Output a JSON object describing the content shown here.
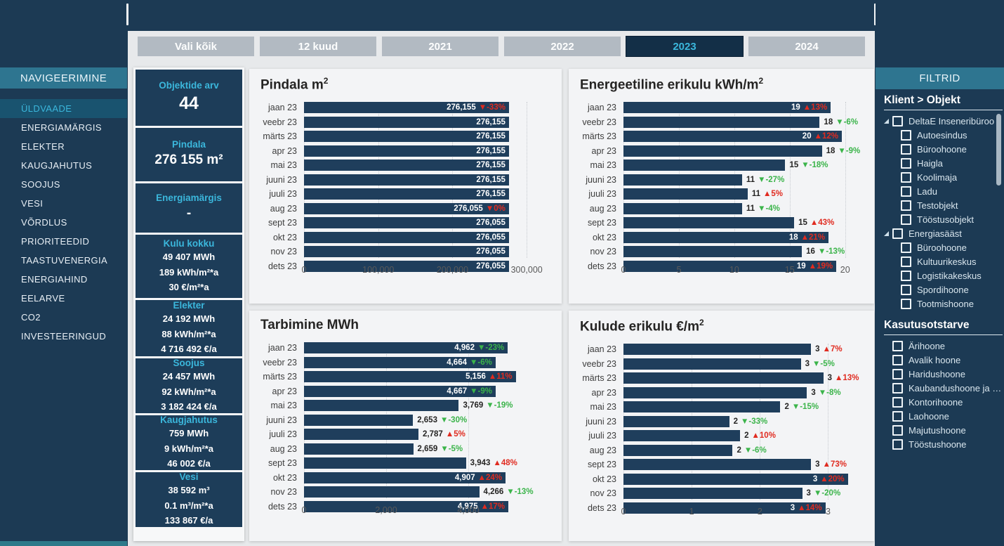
{
  "colors": {
    "navy": "#1c3a54",
    "teal_band": "#2e7590",
    "cyan": "#3bb7dc",
    "bar": "#1f3e5c",
    "red": "#e02b20",
    "green": "#3bb44a",
    "page_bg": "#e7e9eb",
    "card_bg": "#f3f4f6",
    "tab_gray": "#b2bac2",
    "selected_tab_bg": "#132f47",
    "kpi_box": "#1d3d59"
  },
  "nav": {
    "title": "NAVIGEERIMINE",
    "items": [
      {
        "label": "ÜLDVAADE",
        "selected": true
      },
      {
        "label": "ENERGIAMÄRGIS",
        "selected": false
      },
      {
        "label": "ELEKTER",
        "selected": false
      },
      {
        "label": "KAUGJAHUTUS",
        "selected": false
      },
      {
        "label": "SOOJUS",
        "selected": false
      },
      {
        "label": "VESI",
        "selected": false
      },
      {
        "label": "VÕRDLUS",
        "selected": false
      },
      {
        "label": "PRIORITEEDID",
        "selected": false
      },
      {
        "label": "TAASTUVENERGIA",
        "selected": false
      },
      {
        "label": "ENERGIAHIND",
        "selected": false
      },
      {
        "label": "EELARVE",
        "selected": false
      },
      {
        "label": "CO2",
        "selected": false
      },
      {
        "label": "INVESTEERINGUD",
        "selected": false
      }
    ]
  },
  "tabs": [
    {
      "label": "Vali kõik",
      "selected": false
    },
    {
      "label": "12 kuud",
      "selected": false
    },
    {
      "label": "2021",
      "selected": false
    },
    {
      "label": "2022",
      "selected": false
    },
    {
      "label": "2023",
      "selected": true
    },
    {
      "label": "2024",
      "selected": false
    }
  ],
  "kpis": [
    {
      "title": "Objektide arv",
      "style": "xl",
      "lines": [
        "44"
      ]
    },
    {
      "title": "Pindala",
      "style": "lg",
      "lines": [
        "276 155 m²"
      ]
    },
    {
      "title": "Energiamärgis",
      "style": "lg",
      "lines": [
        "-"
      ]
    },
    {
      "title": "Kulu kokku",
      "style": "sm",
      "lines": [
        "49 407 MWh",
        "189 kWh/m²*a",
        "30 €/m²*a"
      ]
    },
    {
      "title": "Elekter",
      "style": "sm",
      "lines": [
        "24 192 MWh",
        "88 kWh/m²*a",
        "4 716 492 €/a"
      ]
    },
    {
      "title": "Soojus",
      "style": "sm",
      "lines": [
        "24 457 MWh",
        "92 kWh/m²*a",
        "3 182 424 €/a"
      ]
    },
    {
      "title": "Kaugjahutus",
      "style": "sm",
      "lines": [
        "759 MWh",
        "9 kWh/m²*a",
        "46 002 €/a"
      ]
    },
    {
      "title": "Vesi",
      "style": "sm",
      "lines": [
        "38 592 m³",
        "0.1 m³/m²*a",
        "133 867 €/a"
      ]
    }
  ],
  "charts": [
    {
      "type": "bar",
      "title": "Pindala m",
      "title_sup": "2",
      "plot_max": 332000,
      "ticks": [
        {
          "v": 0,
          "label": "0"
        },
        {
          "v": 100000,
          "label": "100,000"
        },
        {
          "v": 200000,
          "label": "200,000"
        },
        {
          "v": 300000,
          "label": "300,000"
        }
      ],
      "bars": [
        {
          "m": "jaan 23",
          "v": 276155,
          "label": "276,155",
          "delta": "▼-33%",
          "delta_color": "red",
          "placement": "in"
        },
        {
          "m": "veebr 23",
          "v": 276155,
          "label": "276,155",
          "delta": "",
          "delta_color": "",
          "placement": "in"
        },
        {
          "m": "märts 23",
          "v": 276155,
          "label": "276,155",
          "delta": "",
          "delta_color": "",
          "placement": "in"
        },
        {
          "m": "apr 23",
          "v": 276155,
          "label": "276,155",
          "delta": "",
          "delta_color": "",
          "placement": "in"
        },
        {
          "m": "mai 23",
          "v": 276155,
          "label": "276,155",
          "delta": "",
          "delta_color": "",
          "placement": "in"
        },
        {
          "m": "juuni 23",
          "v": 276155,
          "label": "276,155",
          "delta": "",
          "delta_color": "",
          "placement": "in"
        },
        {
          "m": "juuli 23",
          "v": 276155,
          "label": "276,155",
          "delta": "",
          "delta_color": "",
          "placement": "in"
        },
        {
          "m": "aug 23",
          "v": 276055,
          "label": "276,055",
          "delta": "▼0%",
          "delta_color": "red",
          "placement": "in"
        },
        {
          "m": "sept 23",
          "v": 276055,
          "label": "276,055",
          "delta": "",
          "delta_color": "",
          "placement": "in"
        },
        {
          "m": "okt 23",
          "v": 276055,
          "label": "276,055",
          "delta": "",
          "delta_color": "",
          "placement": "in"
        },
        {
          "m": "nov 23",
          "v": 276055,
          "label": "276,055",
          "delta": "",
          "delta_color": "",
          "placement": "in"
        },
        {
          "m": "dets 23",
          "v": 276055,
          "label": "276,055",
          "delta": "",
          "delta_color": "",
          "placement": "in"
        }
      ]
    },
    {
      "type": "bar",
      "title": "Energeetiline erikulu kWh/m",
      "title_sup": "2",
      "plot_max": 21.6,
      "ticks": [
        {
          "v": 0,
          "label": "0"
        },
        {
          "v": 5,
          "label": "5"
        },
        {
          "v": 10,
          "label": "10"
        },
        {
          "v": 15,
          "label": "15"
        },
        {
          "v": 20,
          "label": "20"
        }
      ],
      "bars": [
        {
          "m": "jaan 23",
          "v": 18.7,
          "label": "19",
          "delta": "▲13%",
          "delta_color": "red",
          "placement": "in"
        },
        {
          "m": "veebr 23",
          "v": 17.7,
          "label": "18",
          "delta": "▼-6%",
          "delta_color": "green",
          "placement": "out"
        },
        {
          "m": "märts 23",
          "v": 19.7,
          "label": "20",
          "delta": "▲12%",
          "delta_color": "red",
          "placement": "in"
        },
        {
          "m": "apr 23",
          "v": 17.9,
          "label": "18",
          "delta": "▼-9%",
          "delta_color": "green",
          "placement": "out"
        },
        {
          "m": "mai 23",
          "v": 14.6,
          "label": "15",
          "delta": "▼-18%",
          "delta_color": "green",
          "placement": "out"
        },
        {
          "m": "juuni 23",
          "v": 10.7,
          "label": "11",
          "delta": "▼-27%",
          "delta_color": "green",
          "placement": "out"
        },
        {
          "m": "juuli 23",
          "v": 11.2,
          "label": "11",
          "delta": "▲5%",
          "delta_color": "red",
          "placement": "out"
        },
        {
          "m": "aug 23",
          "v": 10.7,
          "label": "11",
          "delta": "▼-4%",
          "delta_color": "green",
          "placement": "out"
        },
        {
          "m": "sept 23",
          "v": 15.4,
          "label": "15",
          "delta": "▲43%",
          "delta_color": "red",
          "placement": "out"
        },
        {
          "m": "okt 23",
          "v": 18.5,
          "label": "18",
          "delta": "▲21%",
          "delta_color": "red",
          "placement": "in"
        },
        {
          "m": "nov 23",
          "v": 16.1,
          "label": "16",
          "delta": "▼-13%",
          "delta_color": "green",
          "placement": "out"
        },
        {
          "m": "dets 23",
          "v": 19.2,
          "label": "19",
          "delta": "▲19%",
          "delta_color": "red",
          "placement": "in"
        }
      ]
    },
    {
      "type": "bar",
      "title": "Tarbimine MWh",
      "title_sup": "",
      "plot_max": 6000,
      "ticks": [
        {
          "v": 0,
          "label": "0"
        },
        {
          "v": 2000,
          "label": "2,000"
        },
        {
          "v": 4000,
          "label": "4,000"
        }
      ],
      "bars": [
        {
          "m": "jaan 23",
          "v": 4962,
          "label": "4,962",
          "delta": "▼-23%",
          "delta_color": "green",
          "placement": "in"
        },
        {
          "m": "veebr 23",
          "v": 4664,
          "label": "4,664",
          "delta": "▼-6%",
          "delta_color": "green",
          "placement": "in"
        },
        {
          "m": "märts 23",
          "v": 5156,
          "label": "5,156",
          "delta": "▲11%",
          "delta_color": "red",
          "placement": "in"
        },
        {
          "m": "apr 23",
          "v": 4667,
          "label": "4,667",
          "delta": "▼-9%",
          "delta_color": "green",
          "placement": "in"
        },
        {
          "m": "mai 23",
          "v": 3769,
          "label": "3,769",
          "delta": "▼-19%",
          "delta_color": "green",
          "placement": "out"
        },
        {
          "m": "juuni 23",
          "v": 2653,
          "label": "2,653",
          "delta": "▼-30%",
          "delta_color": "green",
          "placement": "out"
        },
        {
          "m": "juuli 23",
          "v": 2787,
          "label": "2,787",
          "delta": "▲5%",
          "delta_color": "red",
          "placement": "out"
        },
        {
          "m": "aug 23",
          "v": 2659,
          "label": "2,659",
          "delta": "▼-5%",
          "delta_color": "green",
          "placement": "out"
        },
        {
          "m": "sept 23",
          "v": 3943,
          "label": "3,943",
          "delta": "▲48%",
          "delta_color": "red",
          "placement": "out"
        },
        {
          "m": "okt 23",
          "v": 4907,
          "label": "4,907",
          "delta": "▲24%",
          "delta_color": "red",
          "placement": "in"
        },
        {
          "m": "nov 23",
          "v": 4266,
          "label": "4,266",
          "delta": "▼-13%",
          "delta_color": "green",
          "placement": "out"
        },
        {
          "m": "dets 23",
          "v": 4975,
          "label": "4,975",
          "delta": "▲17%",
          "delta_color": "red",
          "placement": "in"
        }
      ]
    },
    {
      "type": "bar",
      "title": "Kulude erikulu €/m",
      "title_sup": "2",
      "plot_max": 3.51,
      "ticks": [
        {
          "v": 0,
          "label": "0"
        },
        {
          "v": 1,
          "label": "1"
        },
        {
          "v": 2,
          "label": "2"
        },
        {
          "v": 3,
          "label": "3"
        }
      ],
      "bars": [
        {
          "m": "jaan 23",
          "v": 2.75,
          "label": "3",
          "delta": "▲7%",
          "delta_color": "red",
          "placement": "out"
        },
        {
          "m": "veebr 23",
          "v": 2.6,
          "label": "3",
          "delta": "▼-5%",
          "delta_color": "green",
          "placement": "out"
        },
        {
          "m": "märts 23",
          "v": 2.93,
          "label": "3",
          "delta": "▲13%",
          "delta_color": "red",
          "placement": "out"
        },
        {
          "m": "apr 23",
          "v": 2.69,
          "label": "3",
          "delta": "▼-8%",
          "delta_color": "green",
          "placement": "out"
        },
        {
          "m": "mai 23",
          "v": 2.3,
          "label": "2",
          "delta": "▼-15%",
          "delta_color": "green",
          "placement": "out"
        },
        {
          "m": "juuni 23",
          "v": 1.55,
          "label": "2",
          "delta": "▼-33%",
          "delta_color": "green",
          "placement": "out"
        },
        {
          "m": "juuli 23",
          "v": 1.71,
          "label": "2",
          "delta": "▲10%",
          "delta_color": "red",
          "placement": "out"
        },
        {
          "m": "aug 23",
          "v": 1.6,
          "label": "2",
          "delta": "▼-6%",
          "delta_color": "green",
          "placement": "out"
        },
        {
          "m": "sept 23",
          "v": 2.75,
          "label": "3",
          "delta": "▲73%",
          "delta_color": "red",
          "placement": "out"
        },
        {
          "m": "okt 23",
          "v": 3.29,
          "label": "3",
          "delta": "▲20%",
          "delta_color": "red",
          "placement": "in"
        },
        {
          "m": "nov 23",
          "v": 2.62,
          "label": "3",
          "delta": "▼-20%",
          "delta_color": "green",
          "placement": "out"
        },
        {
          "m": "dets 23",
          "v": 2.96,
          "label": "3",
          "delta": "▲14%",
          "delta_color": "red",
          "placement": "in"
        }
      ]
    }
  ],
  "filters": {
    "header": "FILTRID",
    "sections": [
      {
        "title": "Klient > Objekt",
        "type": "tree",
        "groups": [
          {
            "label": "DeltaE Inseneribüroo",
            "expanded": true,
            "children": [
              "Autoesindus",
              "Büroohoone",
              "Haigla",
              "Koolimaja",
              "Ladu",
              "Testobjekt",
              "Tööstusobjekt"
            ]
          },
          {
            "label": "Energiasääst",
            "expanded": true,
            "children": [
              "Büroohoone",
              "Kultuurikeskus",
              "Logistikakeskus",
              "Spordihoone",
              "Tootmishoone"
            ]
          }
        ]
      },
      {
        "title": "Kasutusotstarve",
        "type": "list",
        "items": [
          "Ärihoone",
          "Avalik hoone",
          "Haridushoone",
          "Kaubandushoone ja termi…",
          "Kontorihoone",
          "Laohoone",
          "Majutushoone",
          "Tööstushoone"
        ]
      }
    ]
  }
}
